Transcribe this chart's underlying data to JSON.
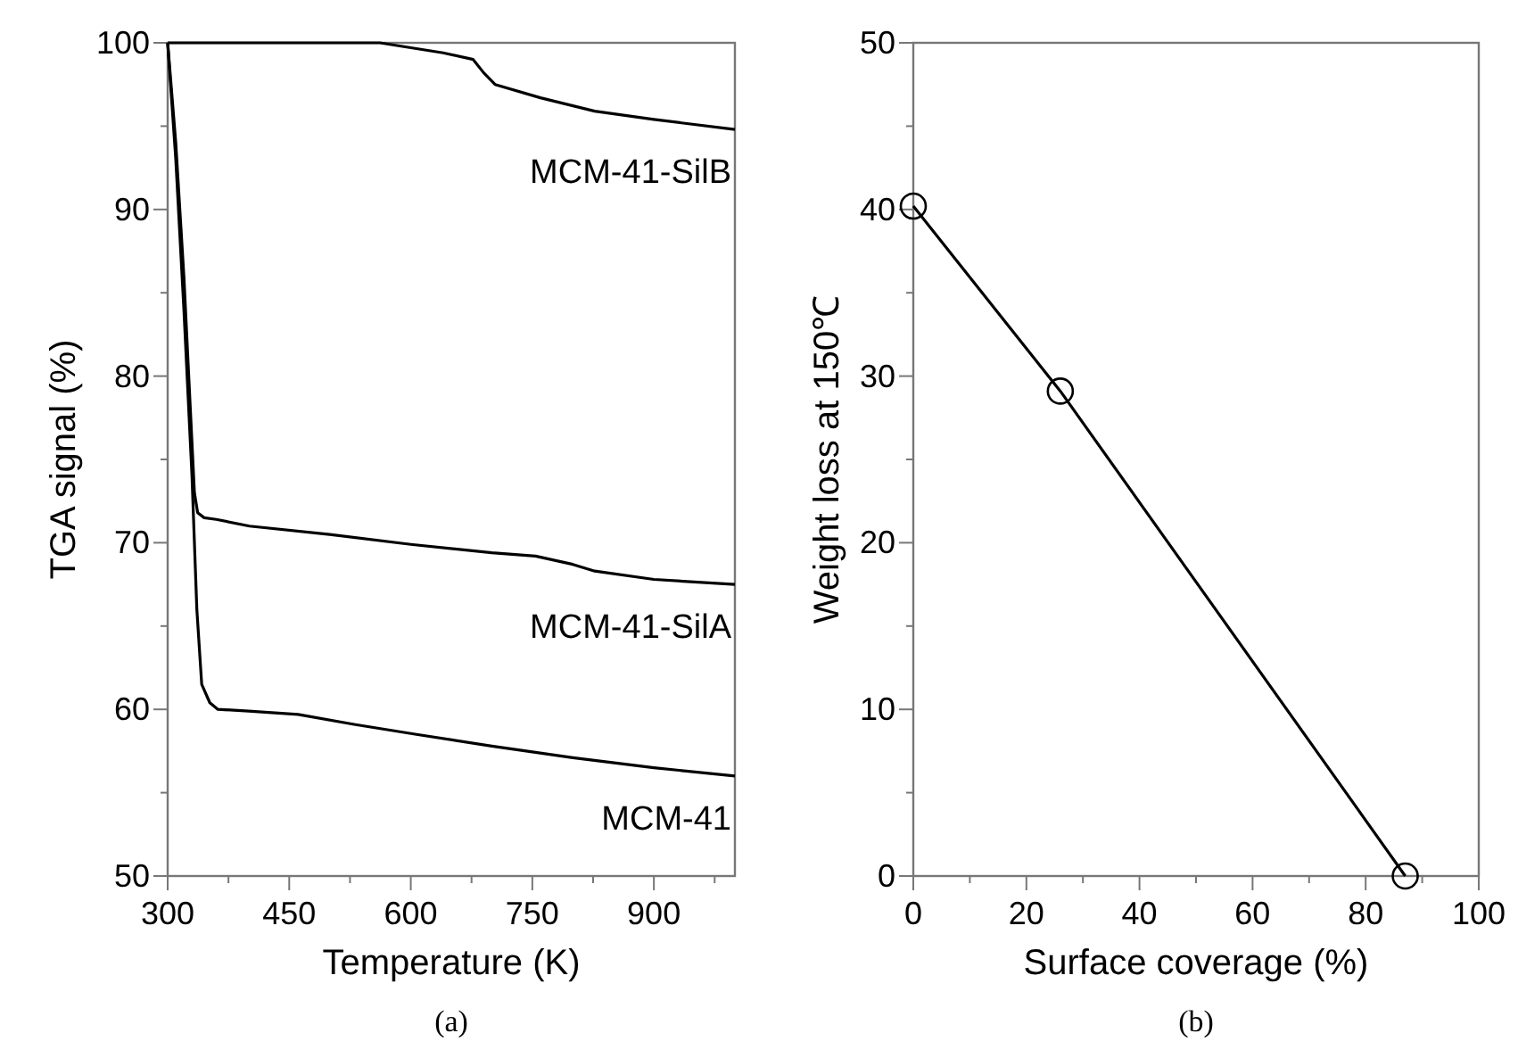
{
  "chart_data": [
    {
      "type": "line",
      "xlabel": "Temperature (K)",
      "ylabel": "TGA signal (%)",
      "annotations": [
        "(a)"
      ],
      "xlim": [
        300,
        1000
      ],
      "ylim": [
        50,
        100
      ],
      "xticks": [
        300,
        {
          "value": 375,
          "label": null
        },
        450,
        {
          "value": 525,
          "label": null
        },
        600,
        {
          "value": 675,
          "label": null
        },
        750,
        {
          "value": 825,
          "label": null
        },
        900,
        {
          "value": 975,
          "label": null
        }
      ],
      "yticks": [
        50,
        {
          "value": 55,
          "label": null
        },
        60,
        {
          "value": 65,
          "label": null
        },
        70,
        {
          "value": 75,
          "label": null
        },
        80,
        {
          "value": 85,
          "label": null
        },
        90,
        {
          "value": 95,
          "label": null
        },
        100
      ],
      "marker": "none",
      "line_style": "solid",
      "grid": false,
      "series": [
        {
          "name": "MCM-41-SilB",
          "color": "#000000",
          "x": [
            300,
            400,
            500,
            562,
            640,
            677,
            690,
            704,
            760,
            827,
            900,
            1000
          ],
          "values": [
            100,
            100,
            100,
            100,
            99.4,
            99.0,
            98.2,
            97.5,
            96.7,
            95.9,
            95.4,
            94.8
          ]
        },
        {
          "name": "MCM-41-SilA",
          "color": "#000000",
          "x": [
            300,
            310,
            320,
            328,
            333,
            337,
            345,
            360,
            401,
            500,
            600,
            700,
            754,
            800,
            827,
            900,
            1000
          ],
          "values": [
            100,
            94,
            86,
            78,
            73,
            71.8,
            71.5,
            71.4,
            71.0,
            70.5,
            69.9,
            69.4,
            69.2,
            68.7,
            68.3,
            67.8,
            67.5
          ]
        },
        {
          "name": "MCM-41",
          "color": "#000000",
          "x": [
            300,
            310,
            320,
            330,
            336,
            342,
            352,
            362,
            400,
            461,
            530,
            607,
            700,
            800,
            900,
            1000
          ],
          "values": [
            100,
            93,
            84,
            74,
            66,
            61.5,
            60.4,
            60.0,
            59.9,
            59.7,
            59.1,
            58.5,
            57.8,
            57.1,
            56.5,
            56.0
          ]
        }
      ]
    },
    {
      "type": "line",
      "xlabel": "Surface coverage (%)",
      "ylabel": "Weight loss at 150℃",
      "annotations": [
        "(b)"
      ],
      "xlim": [
        0,
        100
      ],
      "ylim": [
        0,
        50
      ],
      "xticks": [
        0,
        {
          "value": 10,
          "label": null
        },
        20,
        {
          "value": 30,
          "label": null
        },
        40,
        {
          "value": 50,
          "label": null
        },
        60,
        {
          "value": 70,
          "label": null
        },
        80,
        {
          "value": 90,
          "label": null
        },
        100
      ],
      "yticks": [
        0,
        {
          "value": 5,
          "label": null
        },
        10,
        {
          "value": 15,
          "label": null
        },
        20,
        {
          "value": 25,
          "label": null
        },
        30,
        {
          "value": 35,
          "label": null
        },
        40,
        {
          "value": 45,
          "label": null
        },
        50
      ],
      "marker": "circle",
      "line_style": "solid",
      "grid": false,
      "series": [
        {
          "color": "#000000",
          "x": [
            0,
            26,
            87
          ],
          "values": [
            40.2,
            29.1,
            0
          ]
        }
      ]
    }
  ]
}
